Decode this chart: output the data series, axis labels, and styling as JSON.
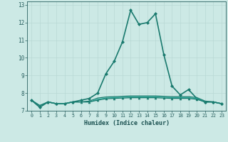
{
  "xlabel": "Humidex (Indice chaleur)",
  "ylabel": "",
  "x": [
    0,
    1,
    2,
    3,
    4,
    5,
    6,
    7,
    8,
    9,
    10,
    11,
    12,
    13,
    14,
    15,
    16,
    17,
    18,
    19,
    20,
    21,
    22,
    23
  ],
  "series": [
    {
      "y": [
        7.6,
        7.2,
        7.5,
        7.4,
        7.4,
        7.5,
        7.6,
        7.7,
        8.0,
        9.1,
        9.8,
        10.9,
        12.7,
        11.9,
        12.0,
        12.5,
        10.2,
        8.4,
        7.9,
        8.2,
        7.7,
        7.5,
        7.5,
        7.4
      ],
      "color": "#1a7a6e",
      "lw": 1.2,
      "marker": "D",
      "markersize": 2.0
    },
    {
      "y": [
        7.6,
        7.2,
        7.5,
        7.4,
        7.4,
        7.5,
        7.5,
        7.55,
        7.72,
        7.78,
        7.8,
        7.82,
        7.84,
        7.84,
        7.84,
        7.84,
        7.82,
        7.8,
        7.8,
        7.8,
        7.75,
        7.55,
        7.5,
        7.4
      ],
      "color": "#1a7a6e",
      "lw": 0.9,
      "marker": null,
      "markersize": 0
    },
    {
      "y": [
        7.6,
        7.3,
        7.5,
        7.4,
        7.4,
        7.5,
        7.5,
        7.5,
        7.65,
        7.72,
        7.74,
        7.76,
        7.78,
        7.78,
        7.78,
        7.78,
        7.76,
        7.74,
        7.74,
        7.74,
        7.7,
        7.5,
        7.5,
        7.4
      ],
      "color": "#2aaa99",
      "lw": 0.9,
      "marker": null,
      "markersize": 0
    },
    {
      "y": [
        7.6,
        7.3,
        7.5,
        7.4,
        7.4,
        7.5,
        7.5,
        7.5,
        7.6,
        7.68,
        7.7,
        7.72,
        7.74,
        7.74,
        7.74,
        7.74,
        7.72,
        7.7,
        7.7,
        7.7,
        7.65,
        7.5,
        7.5,
        7.4
      ],
      "color": "#1a7a6e",
      "lw": 0.9,
      "marker": "^",
      "markersize": 2.0
    }
  ],
  "ylim": [
    7.0,
    13.2
  ],
  "xlim": [
    -0.5,
    23.5
  ],
  "yticks": [
    7,
    8,
    9,
    10,
    11,
    12,
    13
  ],
  "xticks": [
    0,
    1,
    2,
    3,
    4,
    5,
    6,
    7,
    8,
    9,
    10,
    11,
    12,
    13,
    14,
    15,
    16,
    17,
    18,
    19,
    20,
    21,
    22,
    23
  ],
  "bg_color": "#cce9e5",
  "grid_color": "#b8d8d4",
  "tick_color": "#2a6060",
  "label_color": "#1a5050",
  "font_color": "#1a5050"
}
